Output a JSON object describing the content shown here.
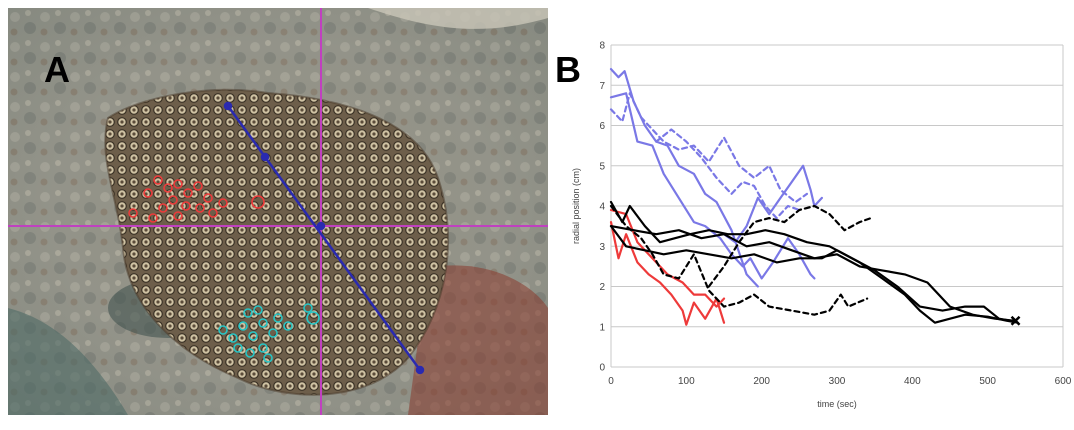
{
  "panel_a": {
    "letter": "A"
  },
  "panel_b": {
    "letter": "B"
  },
  "colors": {
    "blue": "#7a78e6",
    "red": "#ee3a3a",
    "black": "#000000",
    "crosshair": "#c040c0",
    "transect": "#2a2ab0",
    "cyan_marks": "#27c6c6"
  },
  "chart_data": {
    "type": "line",
    "title": "",
    "xlabel": "time (sec)",
    "ylabel": "radial position (cm)",
    "xlim": [
      0,
      600
    ],
    "ylim": [
      0,
      8
    ],
    "xticks": [
      0,
      100,
      200,
      300,
      400,
      500,
      600
    ],
    "yticks": [
      0,
      1,
      2,
      3,
      4,
      5,
      6,
      7,
      8
    ],
    "grid": "horizontal",
    "series": [
      {
        "color": "blue",
        "dash": false,
        "points": [
          [
            0,
            7.4
          ],
          [
            10,
            7.2
          ],
          [
            18,
            7.35
          ],
          [
            30,
            6.6
          ],
          [
            45,
            6.0
          ],
          [
            60,
            5.6
          ],
          [
            75,
            5.5
          ],
          [
            90,
            5.0
          ],
          [
            110,
            4.8
          ],
          [
            125,
            4.3
          ],
          [
            140,
            4.1
          ],
          [
            160,
            3.4
          ],
          [
            180,
            2.3
          ],
          [
            195,
            2.0
          ]
        ]
      },
      {
        "color": "blue",
        "dash": false,
        "points": [
          [
            0,
            6.7
          ],
          [
            20,
            6.8
          ],
          [
            35,
            5.6
          ],
          [
            55,
            5.5
          ],
          [
            70,
            4.8
          ],
          [
            90,
            4.2
          ],
          [
            110,
            3.6
          ],
          [
            125,
            3.5
          ],
          [
            145,
            3.2
          ],
          [
            160,
            2.8
          ],
          [
            175,
            2.5
          ],
          [
            185,
            2.7
          ],
          [
            200,
            2.2
          ],
          [
            215,
            2.6
          ],
          [
            235,
            3.2
          ],
          [
            250,
            2.8
          ],
          [
            265,
            2.3
          ],
          [
            270,
            2.2
          ]
        ]
      },
      {
        "color": "blue",
        "dash": false,
        "points": [
          [
            150,
            3.3
          ],
          [
            165,
            3.1
          ],
          [
            180,
            3.5
          ],
          [
            195,
            4.2
          ],
          [
            210,
            3.8
          ],
          [
            225,
            4.2
          ],
          [
            240,
            4.6
          ],
          [
            255,
            5.0
          ],
          [
            265,
            4.4
          ],
          [
            270,
            4.0
          ],
          [
            280,
            4.2
          ]
        ]
      },
      {
        "color": "blue",
        "dash": true,
        "points": [
          [
            0,
            6.4
          ],
          [
            15,
            6.1
          ],
          [
            25,
            6.8
          ],
          [
            40,
            6.2
          ],
          [
            55,
            5.9
          ],
          [
            70,
            5.6
          ],
          [
            90,
            5.4
          ],
          [
            110,
            5.5
          ],
          [
            130,
            5.1
          ],
          [
            150,
            5.7
          ],
          [
            170,
            5.0
          ],
          [
            190,
            4.7
          ],
          [
            210,
            5.0
          ],
          [
            225,
            4.4
          ],
          [
            245,
            4.1
          ],
          [
            260,
            4.3
          ]
        ]
      },
      {
        "color": "blue",
        "dash": true,
        "points": [
          [
            60,
            5.6
          ],
          [
            80,
            5.9
          ],
          [
            100,
            5.6
          ],
          [
            120,
            5.2
          ],
          [
            140,
            4.7
          ],
          [
            160,
            4.3
          ],
          [
            175,
            4.6
          ],
          [
            190,
            4.5
          ],
          [
            205,
            4.0
          ],
          [
            220,
            3.7
          ],
          [
            235,
            4.0
          ],
          [
            250,
            3.9
          ]
        ]
      },
      {
        "color": "red",
        "dash": false,
        "points": [
          [
            0,
            3.6
          ],
          [
            10,
            2.7
          ],
          [
            20,
            3.3
          ],
          [
            35,
            2.6
          ],
          [
            50,
            2.3
          ],
          [
            65,
            2.1
          ],
          [
            80,
            1.8
          ],
          [
            95,
            1.4
          ],
          [
            100,
            1.05
          ],
          [
            110,
            1.6
          ],
          [
            125,
            1.2
          ],
          [
            140,
            1.7
          ],
          [
            150,
            1.1
          ]
        ]
      },
      {
        "color": "red",
        "dash": false,
        "points": [
          [
            0,
            3.9
          ],
          [
            20,
            3.8
          ],
          [
            35,
            3.1
          ],
          [
            55,
            2.7
          ],
          [
            75,
            2.3
          ],
          [
            95,
            2.1
          ],
          [
            110,
            1.8
          ],
          [
            125,
            1.8
          ],
          [
            140,
            1.5
          ],
          [
            150,
            1.7
          ]
        ]
      },
      {
        "color": "black",
        "dash": false,
        "points": [
          [
            0,
            3.5
          ],
          [
            30,
            3.4
          ],
          [
            60,
            3.3
          ],
          [
            90,
            3.4
          ],
          [
            120,
            3.2
          ],
          [
            150,
            3.3
          ],
          [
            180,
            3.0
          ],
          [
            210,
            3.1
          ],
          [
            240,
            2.9
          ],
          [
            270,
            2.7
          ],
          [
            300,
            2.8
          ],
          [
            330,
            2.5
          ],
          [
            360,
            2.4
          ],
          [
            390,
            2.3
          ],
          [
            420,
            2.1
          ],
          [
            450,
            1.5
          ],
          [
            480,
            1.3
          ],
          [
            510,
            1.2
          ],
          [
            535,
            1.15
          ]
        ]
      },
      {
        "color": "black",
        "dash": false,
        "points": [
          [
            0,
            3.5
          ],
          [
            20,
            3.0
          ],
          [
            45,
            2.9
          ],
          [
            70,
            2.8
          ],
          [
            100,
            2.9
          ],
          [
            130,
            2.8
          ],
          [
            160,
            2.7
          ],
          [
            190,
            2.8
          ],
          [
            220,
            2.6
          ],
          [
            250,
            2.7
          ],
          [
            280,
            2.7
          ],
          [
            300,
            2.9
          ],
          [
            330,
            2.6
          ],
          [
            360,
            2.2
          ],
          [
            390,
            1.8
          ],
          [
            410,
            1.4
          ],
          [
            430,
            1.1
          ],
          [
            450,
            1.2
          ],
          [
            470,
            1.3
          ],
          [
            500,
            1.25
          ],
          [
            525,
            1.15
          ],
          [
            540,
            1.1
          ]
        ]
      },
      {
        "color": "black",
        "dash": false,
        "points": [
          [
            0,
            4.1
          ],
          [
            15,
            3.6
          ],
          [
            25,
            4.0
          ],
          [
            45,
            3.5
          ],
          [
            65,
            3.1
          ],
          [
            85,
            3.2
          ],
          [
            105,
            3.3
          ],
          [
            130,
            3.4
          ],
          [
            155,
            3.3
          ],
          [
            180,
            3.3
          ],
          [
            205,
            3.4
          ],
          [
            230,
            3.3
          ],
          [
            260,
            3.1
          ],
          [
            290,
            3.0
          ],
          [
            320,
            2.7
          ],
          [
            350,
            2.4
          ],
          [
            380,
            2.0
          ],
          [
            410,
            1.5
          ],
          [
            440,
            1.4
          ],
          [
            470,
            1.5
          ],
          [
            495,
            1.5
          ],
          [
            515,
            1.2
          ],
          [
            530,
            1.15
          ]
        ]
      },
      {
        "color": "black",
        "dash": true,
        "points": [
          [
            0,
            4.0
          ],
          [
            20,
            3.5
          ],
          [
            40,
            3.2
          ],
          [
            55,
            2.8
          ],
          [
            70,
            2.3
          ],
          [
            90,
            2.2
          ],
          [
            110,
            2.8
          ],
          [
            130,
            1.9
          ],
          [
            150,
            1.5
          ],
          [
            170,
            1.6
          ],
          [
            190,
            1.8
          ],
          [
            210,
            1.5
          ],
          [
            240,
            1.4
          ],
          [
            270,
            1.3
          ],
          [
            290,
            1.4
          ],
          [
            305,
            1.8
          ],
          [
            315,
            1.5
          ],
          [
            340,
            1.7
          ]
        ]
      },
      {
        "color": "black",
        "dash": true,
        "points": [
          [
            130,
            2.0
          ],
          [
            150,
            2.5
          ],
          [
            170,
            3.1
          ],
          [
            190,
            3.6
          ],
          [
            210,
            3.7
          ],
          [
            230,
            3.6
          ],
          [
            250,
            3.9
          ],
          [
            270,
            4.0
          ],
          [
            290,
            3.8
          ],
          [
            310,
            3.4
          ],
          [
            330,
            3.6
          ],
          [
            345,
            3.7
          ]
        ]
      }
    ],
    "end_markers": [
      {
        "x": 537,
        "y": 1.15,
        "symbol": "x"
      }
    ]
  }
}
